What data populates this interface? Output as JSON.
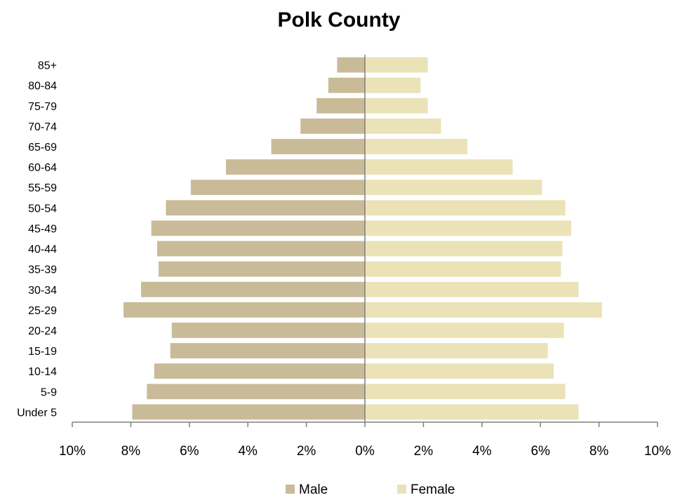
{
  "chart_data": {
    "type": "bar",
    "orientation": "horizontal",
    "title": "Polk County",
    "categories": [
      "85+",
      "80-84",
      "75-79",
      "70-74",
      "65-69",
      "60-64",
      "55-59",
      "50-54",
      "45-49",
      "40-44",
      "35-39",
      "30-34",
      "25-29",
      "20-24",
      "15-19",
      "10-14",
      "5-9",
      "Under 5"
    ],
    "series": [
      {
        "name": "Male",
        "color": "#c9bb98",
        "values": [
          0.95,
          1.25,
          1.65,
          2.2,
          3.2,
          4.75,
          5.95,
          6.8,
          7.3,
          7.1,
          7.05,
          7.65,
          8.25,
          6.6,
          6.65,
          7.2,
          7.45,
          7.95
        ]
      },
      {
        "name": "Female",
        "color": "#ebe2b7",
        "values": [
          2.15,
          1.9,
          2.15,
          2.6,
          3.5,
          5.05,
          6.05,
          6.85,
          7.05,
          6.75,
          6.7,
          7.3,
          8.1,
          6.8,
          6.25,
          6.45,
          6.85,
          7.3
        ]
      }
    ],
    "xlim": [
      -10,
      10
    ],
    "xticks": [
      "10%",
      "8%",
      "6%",
      "4%",
      "2%",
      "0%",
      "2%",
      "4%",
      "6%",
      "8%",
      "10%"
    ],
    "legend": "bottom",
    "grid": false
  }
}
